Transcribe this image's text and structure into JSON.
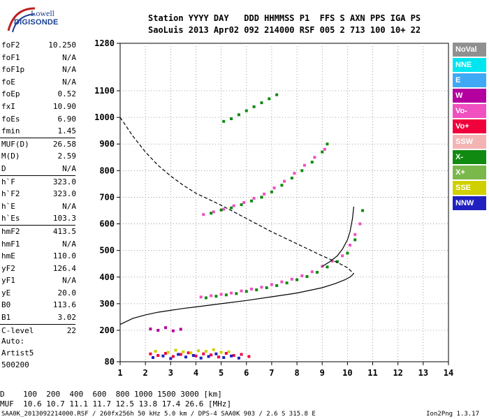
{
  "logo": {
    "line1": "Lowell",
    "line2": "DIGISONDE"
  },
  "header": {
    "row1": "Station YYYY DAY   DDD HHMMSS P1  FFS S AXN PPS IGA PS",
    "row2": "SaoLuis 2013 Apr02 092 214000 RSF 005 2 713 100 10+ 22"
  },
  "params": [
    [
      {
        "name": "foF2",
        "value": "10.250"
      },
      {
        "name": "foF1",
        "value": "N/A"
      },
      {
        "name": "foF1p",
        "value": "N/A"
      },
      {
        "name": "foE",
        "value": "N/A"
      },
      {
        "name": "foEp",
        "value": "0.52"
      },
      {
        "name": "fxI",
        "value": "10.90"
      },
      {
        "name": "foEs",
        "value": "6.90"
      },
      {
        "name": "fmin",
        "value": "1.45"
      }
    ],
    [
      {
        "name": "MUF(D)",
        "value": "26.58"
      },
      {
        "name": "M(D)",
        "value": "2.59"
      },
      {
        "name": "D",
        "value": "N/A"
      }
    ],
    [
      {
        "name": "h`F",
        "value": "323.0"
      },
      {
        "name": "h`F2",
        "value": "323.0"
      },
      {
        "name": "h`E",
        "value": "N/A"
      },
      {
        "name": "h`Es",
        "value": "103.3"
      }
    ],
    [
      {
        "name": "hmF2",
        "value": "413.5"
      },
      {
        "name": "hmF1",
        "value": "N/A"
      },
      {
        "name": "hmE",
        "value": "110.0"
      },
      {
        "name": "yF2",
        "value": "126.4"
      },
      {
        "name": "yF1",
        "value": "N/A"
      },
      {
        "name": "yE",
        "value": "20.0"
      },
      {
        "name": "B0",
        "value": "113.6"
      },
      {
        "name": "B1",
        "value": "3.02"
      }
    ],
    [
      {
        "name": "C-level",
        "value": "22"
      }
    ]
  ],
  "auto": {
    "line1": "Auto:",
    "line2": "Artist5",
    "line3": "500200"
  },
  "legend": [
    {
      "label": "NoVal",
      "color": "#909090"
    },
    {
      "label": "NNE",
      "color": "#00e6f0"
    },
    {
      "label": "E",
      "color": "#3fa9f5"
    },
    {
      "label": "W",
      "color": "#b4009e"
    },
    {
      "label": "Vo-",
      "color": "#f050c0"
    },
    {
      "label": "Vo+",
      "color": "#f0003c"
    },
    {
      "label": "SSW",
      "color": "#f4b4b4"
    },
    {
      "label": "X-",
      "color": "#108a10"
    },
    {
      "label": "X+",
      "color": "#7ab84c"
    },
    {
      "label": "SSE",
      "color": "#d0d000"
    },
    {
      "label": "NNW",
      "color": "#2020c0"
    }
  ],
  "bottom": {
    "row1": "D    100  200  400  600  800 1000 1500 3000 [km]",
    "row2": "MUF  10.6 10.7 11.1 11.7 12.5 13.8 17.4 26.6 [MHz]"
  },
  "footer": {
    "left": "SAA0K_2013092214000.RSF / 260fx256h 50 kHz 5.0 km / DPS-4 SAA0K 903 / 2.6 S 315.8 E",
    "right": "Ion2Png 1.3.17"
  },
  "chart_data": {
    "type": "scatter",
    "x_ticks": [
      "1",
      "2",
      "3",
      "4",
      "5",
      "6",
      "7",
      "8",
      "9",
      "10",
      "11",
      "12",
      "13",
      "14"
    ],
    "y_ticks": [
      "80",
      "200",
      "300",
      "400",
      "500",
      "600",
      "700",
      "800",
      "900",
      "1000",
      "1100",
      "1280"
    ],
    "x_range": [
      1,
      14
    ],
    "y_range": [
      80,
      1280
    ],
    "grid": true,
    "series": [
      {
        "color": "#f050c0",
        "x": [
          4.2,
          4.6,
          5.0,
          5.4,
          5.8,
          6.2,
          6.6,
          7.0,
          7.4,
          7.8,
          8.2,
          8.6,
          9.0,
          9.4,
          9.8,
          10.1,
          10.3,
          10.5
        ],
        "y": [
          325,
          330,
          335,
          340,
          348,
          355,
          362,
          372,
          382,
          392,
          405,
          420,
          440,
          460,
          480,
          520,
          560,
          600
        ]
      },
      {
        "color": "#108a10",
        "x": [
          4.4,
          4.8,
          5.2,
          5.6,
          6.0,
          6.4,
          6.8,
          7.2,
          7.6,
          8.0,
          8.4,
          8.8,
          9.2,
          9.6,
          10.0,
          10.3,
          10.6
        ],
        "y": [
          322,
          328,
          333,
          338,
          346,
          352,
          360,
          368,
          378,
          390,
          402,
          418,
          438,
          458,
          490,
          540,
          650
        ]
      },
      {
        "color": "#f050c0",
        "x": [
          4.3,
          4.7,
          5.1,
          5.5,
          5.9,
          6.3,
          6.7,
          7.1,
          7.5,
          7.9,
          8.3,
          8.7,
          9.1
        ],
        "y": [
          635,
          645,
          655,
          668,
          680,
          696,
          712,
          735,
          760,
          790,
          820,
          850,
          880
        ]
      },
      {
        "color": "#108a10",
        "x": [
          4.6,
          5.0,
          5.4,
          5.8,
          6.2,
          6.6,
          7.0,
          7.4,
          7.8,
          8.2,
          8.6,
          9.0,
          9.2
        ],
        "y": [
          640,
          652,
          660,
          672,
          686,
          700,
          720,
          745,
          772,
          800,
          832,
          870,
          900
        ]
      },
      {
        "color": "#108a10",
        "x": [
          5.1,
          5.4,
          5.7,
          6.0,
          6.3,
          6.6,
          6.9,
          7.2
        ],
        "y": [
          985,
          995,
          1010,
          1025,
          1040,
          1055,
          1070,
          1085
        ]
      },
      {
        "color": "#f0003c",
        "x": [
          2.2,
          2.5,
          2.8,
          3.1,
          3.4,
          3.7,
          4.0,
          4.3,
          4.6,
          4.9,
          5.2,
          5.5,
          5.8,
          6.1
        ],
        "y": [
          110,
          104,
          112,
          100,
          108,
          114,
          102,
          110,
          106,
          98,
          112,
          104,
          108,
          100
        ]
      },
      {
        "color": "#2020c0",
        "x": [
          2.3,
          2.7,
          3.0,
          3.3,
          3.6,
          3.9,
          4.2,
          4.5,
          4.8,
          5.1,
          5.4,
          5.7
        ],
        "y": [
          96,
          102,
          92,
          108,
          98,
          104,
          94,
          100,
          110,
          96,
          102,
          94
        ]
      },
      {
        "color": "#d0d000",
        "x": [
          2.4,
          2.9,
          3.2,
          3.5,
          3.8,
          4.1,
          4.4,
          4.7,
          5.0,
          5.3
        ],
        "y": [
          120,
          116,
          124,
          118,
          114,
          122,
          120,
          126,
          116,
          118
        ]
      },
      {
        "color": "#b4009e",
        "x": [
          2.2,
          2.5,
          2.8,
          3.1,
          3.4
        ],
        "y": [
          205,
          200,
          210,
          198,
          204
        ]
      }
    ],
    "lines": [
      {
        "style": "solid",
        "x": [
          1.0,
          1.5,
          2.0,
          2.5,
          3.0,
          3.5,
          4.0,
          5.0,
          6.0,
          7.0,
          8.0,
          9.0,
          9.5,
          9.9,
          10.1,
          10.25
        ],
        "y": [
          222,
          245,
          258,
          268,
          275,
          282,
          288,
          300,
          312,
          326,
          340,
          360,
          375,
          390,
          400,
          413
        ]
      },
      {
        "style": "solid",
        "x": [
          9.0,
          9.3,
          9.6,
          9.8,
          10.0,
          10.1,
          10.2,
          10.25
        ],
        "y": [
          440,
          458,
          480,
          505,
          540,
          570,
          620,
          665
        ]
      },
      {
        "style": "dashed",
        "x": [
          1.0,
          1.5,
          2.0,
          2.5,
          3.0,
          3.5,
          4.0,
          5.0,
          6.0,
          7.0,
          8.0,
          9.0,
          9.6,
          10.0,
          10.25
        ],
        "y": [
          1000,
          930,
          870,
          820,
          780,
          745,
          715,
          670,
          620,
          570,
          525,
          480,
          455,
          435,
          413
        ]
      }
    ]
  }
}
